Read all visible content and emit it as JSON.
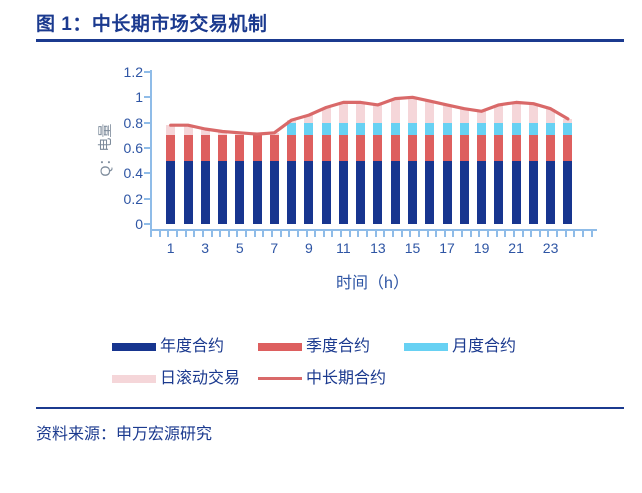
{
  "title": "图 1：中长期市场交易机制",
  "source": "资料来源：申万宏源研究",
  "colors": {
    "title_navy": "#1b3a8f",
    "rule_navy": "#1b3a8f",
    "tick_blue": "#2e55a4",
    "axis_light_blue": "#8fbce8",
    "ytitle_gray": "#7d8b9b",
    "bar_annual": "#17358f",
    "bar_quarter": "#dd5f5f",
    "bar_month": "#67d1f3",
    "bar_daily": "#f5d6d9",
    "line_red": "#d96969"
  },
  "chart_data": {
    "type": "bar",
    "subtype": "stacked-bars-with-line-overlay",
    "title": "",
    "xlabel": "时间（h）",
    "ylabel": "Q：电量",
    "ylim": [
      0,
      1.2
    ],
    "ytick_labels": [
      "0",
      "0.2",
      "0.4",
      "0.6",
      "0.8",
      "1",
      "1.2"
    ],
    "ytick_values": [
      0,
      0.2,
      0.4,
      0.6,
      0.8,
      1,
      1.2
    ],
    "x": [
      1,
      2,
      3,
      4,
      5,
      6,
      7,
      8,
      9,
      10,
      11,
      12,
      13,
      14,
      15,
      16,
      17,
      18,
      19,
      20,
      21,
      22,
      23,
      24
    ],
    "x_tick_labels": [
      "1",
      "3",
      "5",
      "7",
      "9",
      "11",
      "13",
      "15",
      "17",
      "19",
      "21",
      "23"
    ],
    "x_tick_hours": [
      1,
      3,
      5,
      7,
      9,
      11,
      13,
      15,
      17,
      19,
      21,
      23
    ],
    "grid": "off",
    "legend_position": "bottom",
    "series": [
      {
        "name": "年度合约",
        "type": "bar",
        "values": [
          0.5,
          0.5,
          0.5,
          0.5,
          0.5,
          0.5,
          0.5,
          0.5,
          0.5,
          0.5,
          0.5,
          0.5,
          0.5,
          0.5,
          0.5,
          0.5,
          0.5,
          0.5,
          0.5,
          0.5,
          0.5,
          0.5,
          0.5,
          0.5
        ]
      },
      {
        "name": "季度合约",
        "type": "bar",
        "values": [
          0.2,
          0.2,
          0.2,
          0.2,
          0.2,
          0.2,
          0.2,
          0.2,
          0.2,
          0.2,
          0.2,
          0.2,
          0.2,
          0.2,
          0.2,
          0.2,
          0.2,
          0.2,
          0.2,
          0.2,
          0.2,
          0.2,
          0.2,
          0.2
        ]
      },
      {
        "name": "月度合约",
        "type": "bar",
        "values": [
          0,
          0,
          0,
          0,
          0,
          0,
          0,
          0.1,
          0.1,
          0.1,
          0.1,
          0.1,
          0.1,
          0.1,
          0.1,
          0.1,
          0.1,
          0.1,
          0.1,
          0.1,
          0.1,
          0.1,
          0.1,
          0.1
        ]
      },
      {
        "name": "日滚动交易",
        "type": "bar",
        "values": [
          0.08,
          0.08,
          0.05,
          0.03,
          0.02,
          0.01,
          0.02,
          0.02,
          0.06,
          0.12,
          0.16,
          0.16,
          0.14,
          0.19,
          0.2,
          0.17,
          0.14,
          0.11,
          0.09,
          0.14,
          0.16,
          0.15,
          0.11,
          0.03
        ]
      },
      {
        "name": "中长期合约",
        "type": "line",
        "values": [
          0.78,
          0.78,
          0.75,
          0.73,
          0.72,
          0.71,
          0.72,
          0.82,
          0.86,
          0.92,
          0.96,
          0.96,
          0.94,
          0.99,
          1.0,
          0.97,
          0.94,
          0.91,
          0.89,
          0.94,
          0.96,
          0.95,
          0.91,
          0.83
        ]
      }
    ]
  }
}
